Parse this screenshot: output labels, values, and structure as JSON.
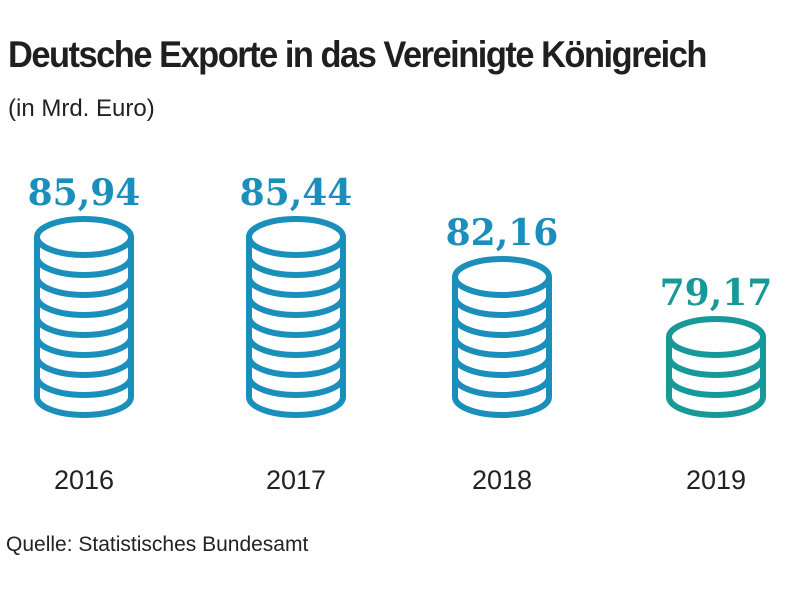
{
  "chart_data": {
    "type": "bar",
    "title": "Deutsche Exporte in das Vereinigte Königreich",
    "subtitle": "(in Mrd. Euro)",
    "categories": [
      "2016",
      "2017",
      "2018",
      "2019"
    ],
    "values": [
      85.94,
      85.44,
      82.16,
      79.17
    ],
    "value_labels": [
      "85,94",
      "85,44",
      "82,16",
      "79,17"
    ],
    "coins_per_stack": [
      8,
      8,
      6,
      3
    ],
    "colors": [
      "#1a8fbb",
      "#1a8fbb",
      "#1a8fbb",
      "#17999a"
    ],
    "xlabel": "",
    "ylabel": "Mrd. Euro",
    "source": "Quelle: Statistisches Bundesamt"
  }
}
